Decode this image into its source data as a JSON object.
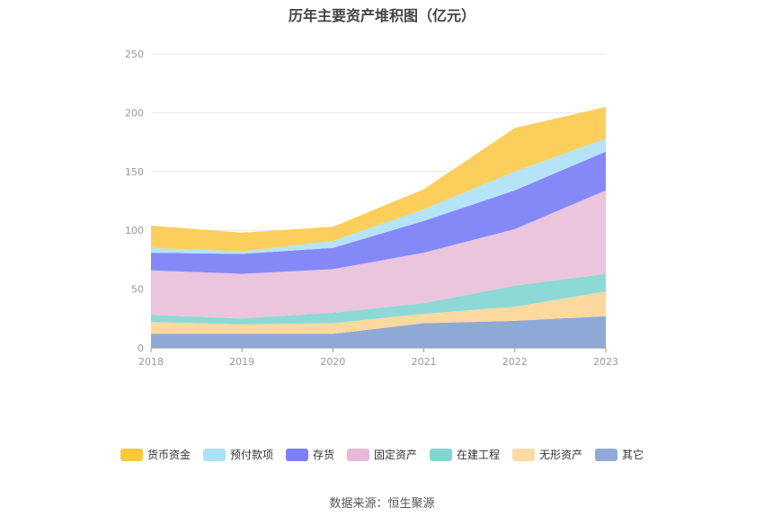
{
  "chart_data": {
    "type": "area",
    "stacked": true,
    "title": "历年主要资产堆积图（亿元）",
    "xlabel": "",
    "ylabel": "",
    "categories": [
      "2018",
      "2019",
      "2020",
      "2021",
      "2022",
      "2023"
    ],
    "ylim": [
      0,
      250
    ],
    "yticks": [
      0,
      50,
      100,
      150,
      200,
      250
    ],
    "grid": true,
    "legend_position": "bottom",
    "series": [
      {
        "name": "其它",
        "color": "#8fa9d6",
        "values": [
          12,
          12,
          12,
          21,
          23,
          27
        ]
      },
      {
        "name": "无形资产",
        "color": "#fcd99f",
        "values": [
          10,
          8,
          9,
          8,
          12,
          21
        ]
      },
      {
        "name": "在建工程",
        "color": "#8dd9d6",
        "values": [
          6,
          5,
          9,
          9,
          18,
          15
        ]
      },
      {
        "name": "固定资产",
        "color": "#ebc4de",
        "values": [
          38,
          38,
          37,
          43,
          48,
          71
        ]
      },
      {
        "name": "存货",
        "color": "#8589f7",
        "values": [
          15,
          17,
          18,
          27,
          33,
          33
        ]
      },
      {
        "name": "预付款项",
        "color": "#b5e4f9",
        "values": [
          4,
          2,
          6,
          10,
          16,
          11
        ]
      },
      {
        "name": "货币资金",
        "color": "#fccf5c",
        "values": [
          19,
          16,
          12,
          17,
          37,
          27
        ]
      }
    ]
  },
  "legend_items": [
    "货币资金",
    "预付款项",
    "存货",
    "固定资产",
    "在建工程",
    "无形资产",
    "其它"
  ],
  "source_text": "数据来源：恒生聚源"
}
